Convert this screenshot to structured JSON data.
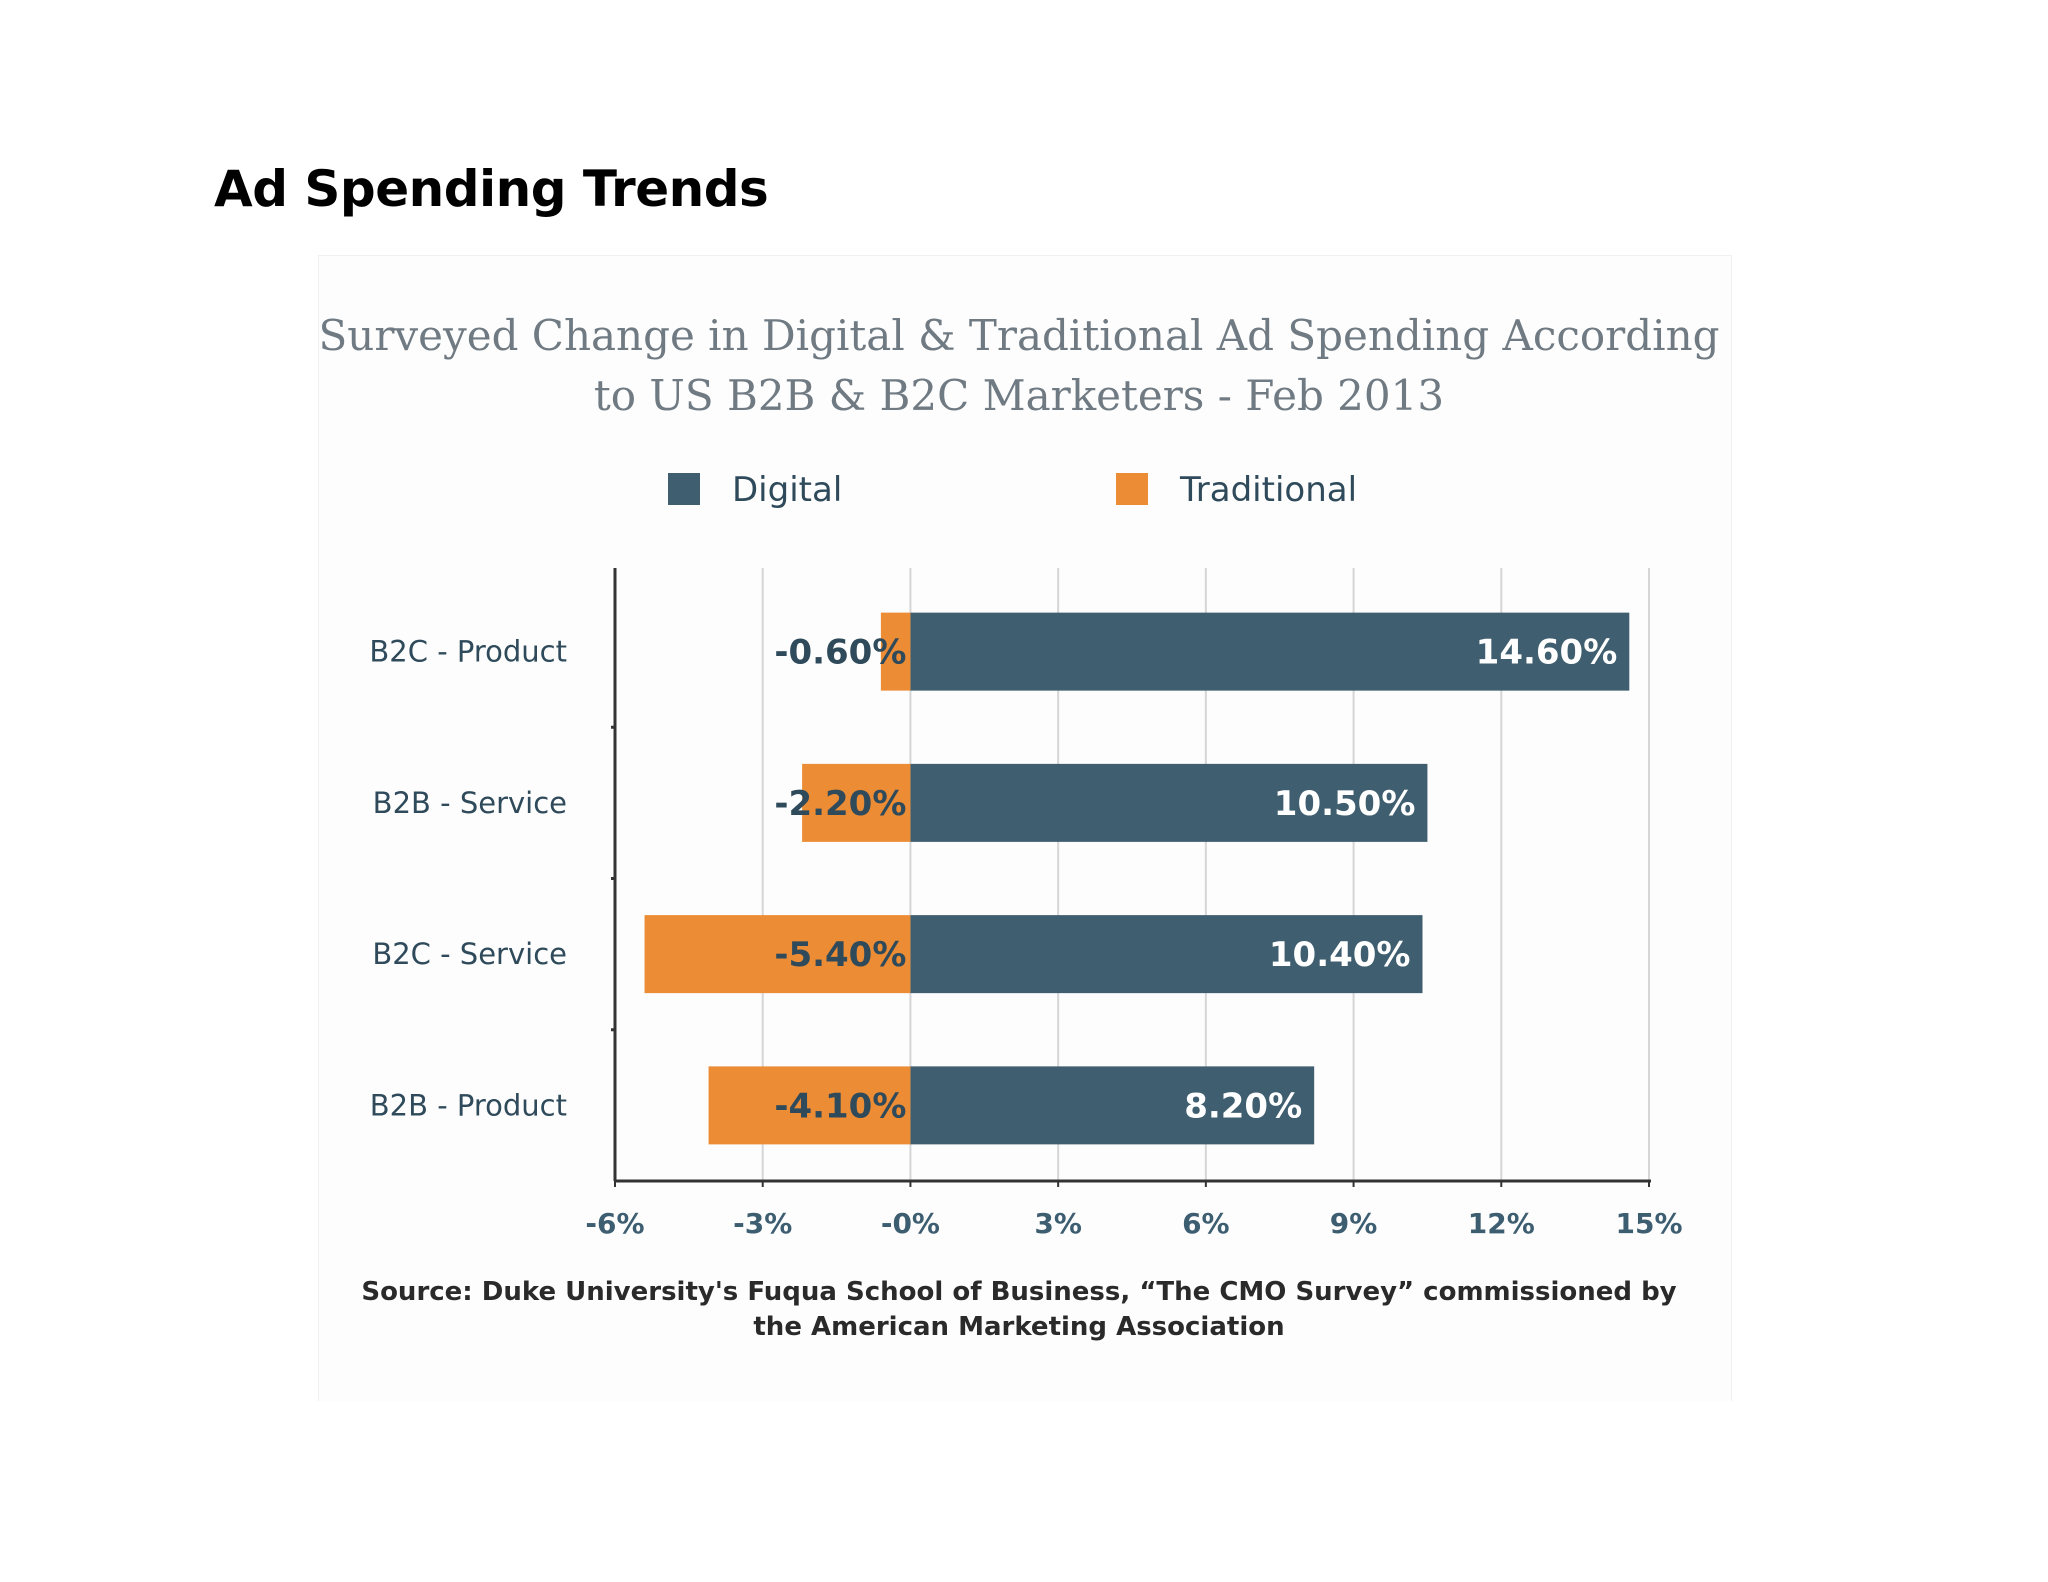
{
  "page": {
    "title": "Ad Spending Trends"
  },
  "chart_data": {
    "type": "bar",
    "orientation": "horizontal",
    "stacked": "diverging",
    "title_lines": [
      "Surveyed Change in Digital & Traditional Ad Spending According",
      "to US B2B & B2C Marketers - Feb 2013"
    ],
    "categories": [
      "B2C - Product",
      "B2B - Service",
      "B2C - Service",
      "B2B - Product"
    ],
    "series": [
      {
        "name": "Digital",
        "color": "#3f5e6f",
        "values": [
          14.6,
          10.5,
          10.4,
          8.2
        ],
        "labels": [
          "14.60%",
          "10.50%",
          "10.40%",
          "8.20%"
        ],
        "label_color": "#ffffff"
      },
      {
        "name": "Traditional",
        "color": "#ec8c35",
        "values": [
          -0.6,
          -2.2,
          -5.4,
          -4.1
        ],
        "labels": [
          "-0.60%",
          "-2.20%",
          "-5.40%",
          "-4.10%"
        ],
        "label_color": "#2f4a5a"
      }
    ],
    "xlim": [
      -6,
      15
    ],
    "xticks": [
      -6,
      -3,
      0,
      3,
      6,
      9,
      12,
      15
    ],
    "xtick_labels": [
      "-6%",
      "-3%",
      "-0%",
      "3%",
      "6%",
      "9%",
      "12%",
      "15%"
    ],
    "xlabel": "",
    "ylabel": "",
    "grid": true,
    "legend_position": "top",
    "source_lines": [
      "Source: Duke University's Fuqua School of Business, “The CMO Survey” commissioned by",
      "the American Marketing Association"
    ]
  }
}
